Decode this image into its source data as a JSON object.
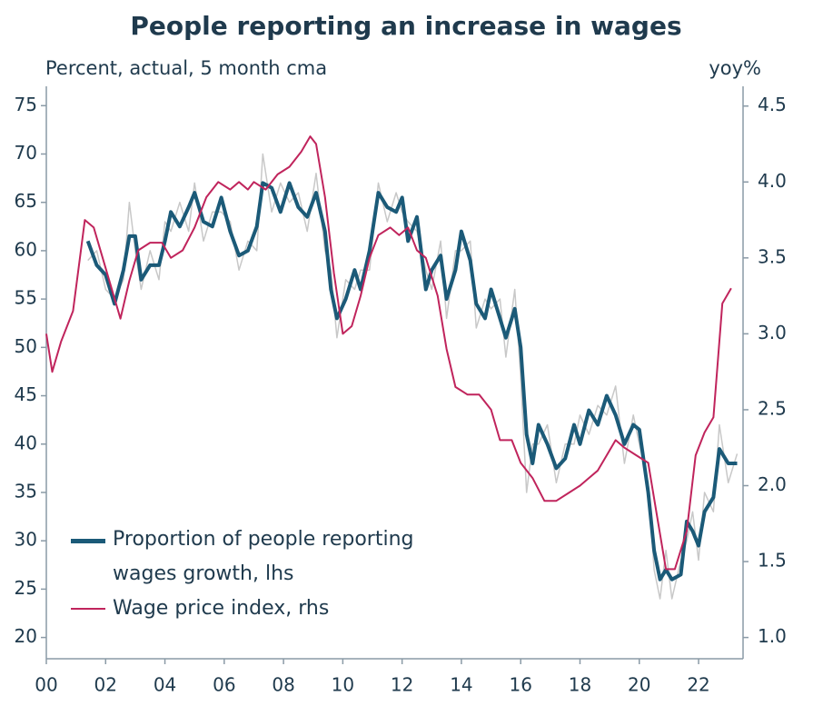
{
  "chart_data": {
    "type": "line",
    "title": "People reporting an increase in wages",
    "y_label": "Percent, actual, 5 month cma",
    "y2_label": "yoy%",
    "xlim": [
      2000,
      2023.5
    ],
    "xticks": [
      {
        "value": 2000,
        "label": "00"
      },
      {
        "value": 2002,
        "label": "02"
      },
      {
        "value": 2004,
        "label": "04"
      },
      {
        "value": 2006,
        "label": "06"
      },
      {
        "value": 2008,
        "label": "08"
      },
      {
        "value": 2010,
        "label": "10"
      },
      {
        "value": 2012,
        "label": "12"
      },
      {
        "value": 2014,
        "label": "14"
      },
      {
        "value": 2016,
        "label": "16"
      },
      {
        "value": 2018,
        "label": "18"
      },
      {
        "value": 2020,
        "label": "20"
      },
      {
        "value": 2022,
        "label": "22"
      }
    ],
    "ylim": [
      17.8,
      77
    ],
    "yticks": [
      20,
      25,
      30,
      35,
      40,
      45,
      50,
      55,
      60,
      65,
      70,
      75
    ],
    "y2lim": [
      0.86,
      4.63
    ],
    "y2ticks": [
      {
        "value": 1,
        "label": "1.0"
      },
      {
        "value": 1.5,
        "label": "1.5"
      },
      {
        "value": 2,
        "label": "2.0"
      },
      {
        "value": 2.5,
        "label": "2.5"
      },
      {
        "value": 3,
        "label": "3.0"
      },
      {
        "value": 3.5,
        "label": "3.5"
      },
      {
        "value": 4,
        "label": "4.0"
      },
      {
        "value": 4.5,
        "label": "4.5"
      }
    ],
    "grid": false,
    "legend": "lower left",
    "series": [
      {
        "color": "#c8c8c8",
        "x": [
          2001.4,
          2001.7,
          2002.0,
          2002.3,
          2002.6,
          2002.8,
          2003.0,
          2003.2,
          2003.5,
          2003.8,
          2004.0,
          2004.2,
          2004.5,
          2004.8,
          2005.0,
          2005.3,
          2005.6,
          2005.9,
          2006.2,
          2006.5,
          2006.8,
          2007.1,
          2007.3,
          2007.6,
          2007.9,
          2008.2,
          2008.5,
          2008.8,
          2009.1,
          2009.4,
          2009.6,
          2009.8,
          2010.1,
          2010.4,
          2010.6,
          2010.9,
          2011.2,
          2011.5,
          2011.8,
          2012.0,
          2012.2,
          2012.5,
          2012.8,
          2013.0,
          2013.3,
          2013.5,
          2013.8,
          2014.0,
          2014.3,
          2014.5,
          2014.8,
          2015.0,
          2015.3,
          2015.5,
          2015.8,
          2016.0,
          2016.2,
          2016.4,
          2016.6,
          2016.9,
          2017.2,
          2017.5,
          2017.8,
          2018.0,
          2018.3,
          2018.6,
          2018.9,
          2019.2,
          2019.5,
          2019.8,
          2020.0,
          2020.3,
          2020.5,
          2020.7,
          2020.9,
          2021.1,
          2021.4,
          2021.6,
          2021.8,
          2022.0,
          2022.2,
          2022.5,
          2022.7,
          2023.0,
          2023.3
        ],
        "values": [
          59,
          60,
          56,
          55,
          57,
          65,
          60,
          56,
          60,
          57,
          63,
          62,
          65,
          62,
          67,
          61,
          64,
          64,
          63,
          58,
          61,
          60,
          70,
          64,
          67,
          65,
          66,
          62,
          68,
          60,
          58,
          51,
          57,
          56,
          58,
          58,
          67,
          63,
          66,
          64,
          63,
          62,
          58,
          56,
          61,
          53,
          60,
          60,
          61,
          52,
          55,
          54,
          55,
          49,
          56,
          47,
          35,
          40,
          40,
          42,
          36,
          40,
          40,
          43,
          41,
          44,
          43,
          46,
          38,
          43,
          40,
          36,
          27,
          24,
          29,
          24,
          28,
          30,
          33,
          28,
          35,
          33,
          42,
          36,
          39
        ]
      },
      {
        "name": "Proportion of people reporting wages growth, lhs",
        "color": "#1b5a78",
        "x": [
          2001.4,
          2001.7,
          2002.0,
          2002.3,
          2002.6,
          2002.8,
          2003.0,
          2003.2,
          2003.5,
          2003.8,
          2004.0,
          2004.2,
          2004.5,
          2004.8,
          2005.0,
          2005.3,
          2005.6,
          2005.9,
          2006.2,
          2006.5,
          2006.8,
          2007.1,
          2007.3,
          2007.6,
          2007.9,
          2008.2,
          2008.5,
          2008.8,
          2009.1,
          2009.4,
          2009.6,
          2009.8,
          2010.1,
          2010.4,
          2010.6,
          2010.9,
          2011.2,
          2011.5,
          2011.8,
          2012.0,
          2012.2,
          2012.5,
          2012.8,
          2013.0,
          2013.3,
          2013.5,
          2013.8,
          2014.0,
          2014.3,
          2014.5,
          2014.8,
          2015.0,
          2015.3,
          2015.5,
          2015.8,
          2016.0,
          2016.2,
          2016.4,
          2016.6,
          2016.9,
          2017.2,
          2017.5,
          2017.8,
          2018.0,
          2018.3,
          2018.6,
          2018.9,
          2019.2,
          2019.5,
          2019.8,
          2020.0,
          2020.3,
          2020.5,
          2020.7,
          2020.9,
          2021.1,
          2021.4,
          2021.6,
          2021.8,
          2022.0,
          2022.2,
          2022.5,
          2022.7,
          2023.0,
          2023.3
        ],
        "values": [
          61,
          58.5,
          57.5,
          54.5,
          58,
          61.5,
          61.5,
          57,
          58.5,
          58.5,
          61,
          64,
          62.5,
          64.5,
          66,
          63,
          62.5,
          65.5,
          62,
          59.5,
          60,
          62.5,
          67,
          66.5,
          64,
          67,
          64.5,
          63.5,
          66,
          62,
          56,
          53,
          55,
          58,
          56,
          60,
          66,
          64.5,
          64,
          65.5,
          61,
          63.5,
          56,
          58,
          59.5,
          55,
          58,
          62,
          59,
          54.5,
          53,
          56,
          53,
          51,
          54,
          50,
          41,
          38,
          42,
          40,
          37.5,
          38.5,
          42,
          40,
          43.5,
          42,
          45,
          43,
          40,
          42,
          41.5,
          35,
          29,
          26,
          27,
          26,
          26.5,
          32,
          31,
          29.5,
          33,
          34.5,
          39.5,
          38,
          38
        ]
      },
      {
        "name": "Wage price index, rhs",
        "color": "#c0245c",
        "axis": "y2",
        "x": [
          2000.0,
          2000.2,
          2000.5,
          2000.9,
          2001.3,
          2001.6,
          2001.9,
          2002.2,
          2002.5,
          2002.8,
          2003.1,
          2003.5,
          2003.9,
          2004.2,
          2004.6,
          2005.0,
          2005.4,
          2005.8,
          2006.2,
          2006.5,
          2006.8,
          2007.0,
          2007.4,
          2007.8,
          2008.2,
          2008.6,
          2008.9,
          2009.1,
          2009.4,
          2009.7,
          2010.0,
          2010.3,
          2010.6,
          2010.9,
          2011.2,
          2011.6,
          2011.9,
          2012.2,
          2012.5,
          2012.8,
          2013.2,
          2013.5,
          2013.8,
          2014.2,
          2014.6,
          2015.0,
          2015.3,
          2015.7,
          2016.0,
          2016.4,
          2016.8,
          2017.2,
          2017.6,
          2018.0,
          2018.3,
          2018.6,
          2018.9,
          2019.2,
          2019.5,
          2019.9,
          2020.3,
          2020.6,
          2020.9,
          2021.2,
          2021.6,
          2021.9,
          2022.2,
          2022.5,
          2022.8,
          2023.1
        ],
        "values": [
          3.0,
          2.75,
          2.95,
          3.15,
          3.75,
          3.7,
          3.5,
          3.3,
          3.1,
          3.35,
          3.55,
          3.6,
          3.6,
          3.5,
          3.55,
          3.7,
          3.9,
          4.0,
          3.95,
          4.0,
          3.95,
          4.0,
          3.95,
          4.05,
          4.1,
          4.2,
          4.3,
          4.25,
          3.9,
          3.4,
          3.0,
          3.05,
          3.25,
          3.5,
          3.65,
          3.7,
          3.65,
          3.7,
          3.55,
          3.5,
          3.25,
          2.9,
          2.65,
          2.6,
          2.6,
          2.5,
          2.3,
          2.3,
          2.15,
          2.05,
          1.9,
          1.9,
          1.95,
          2.0,
          2.05,
          2.1,
          2.2,
          2.3,
          2.25,
          2.2,
          2.15,
          1.8,
          1.45,
          1.45,
          1.7,
          2.2,
          2.35,
          2.45,
          3.2,
          3.3
        ]
      }
    ]
  }
}
